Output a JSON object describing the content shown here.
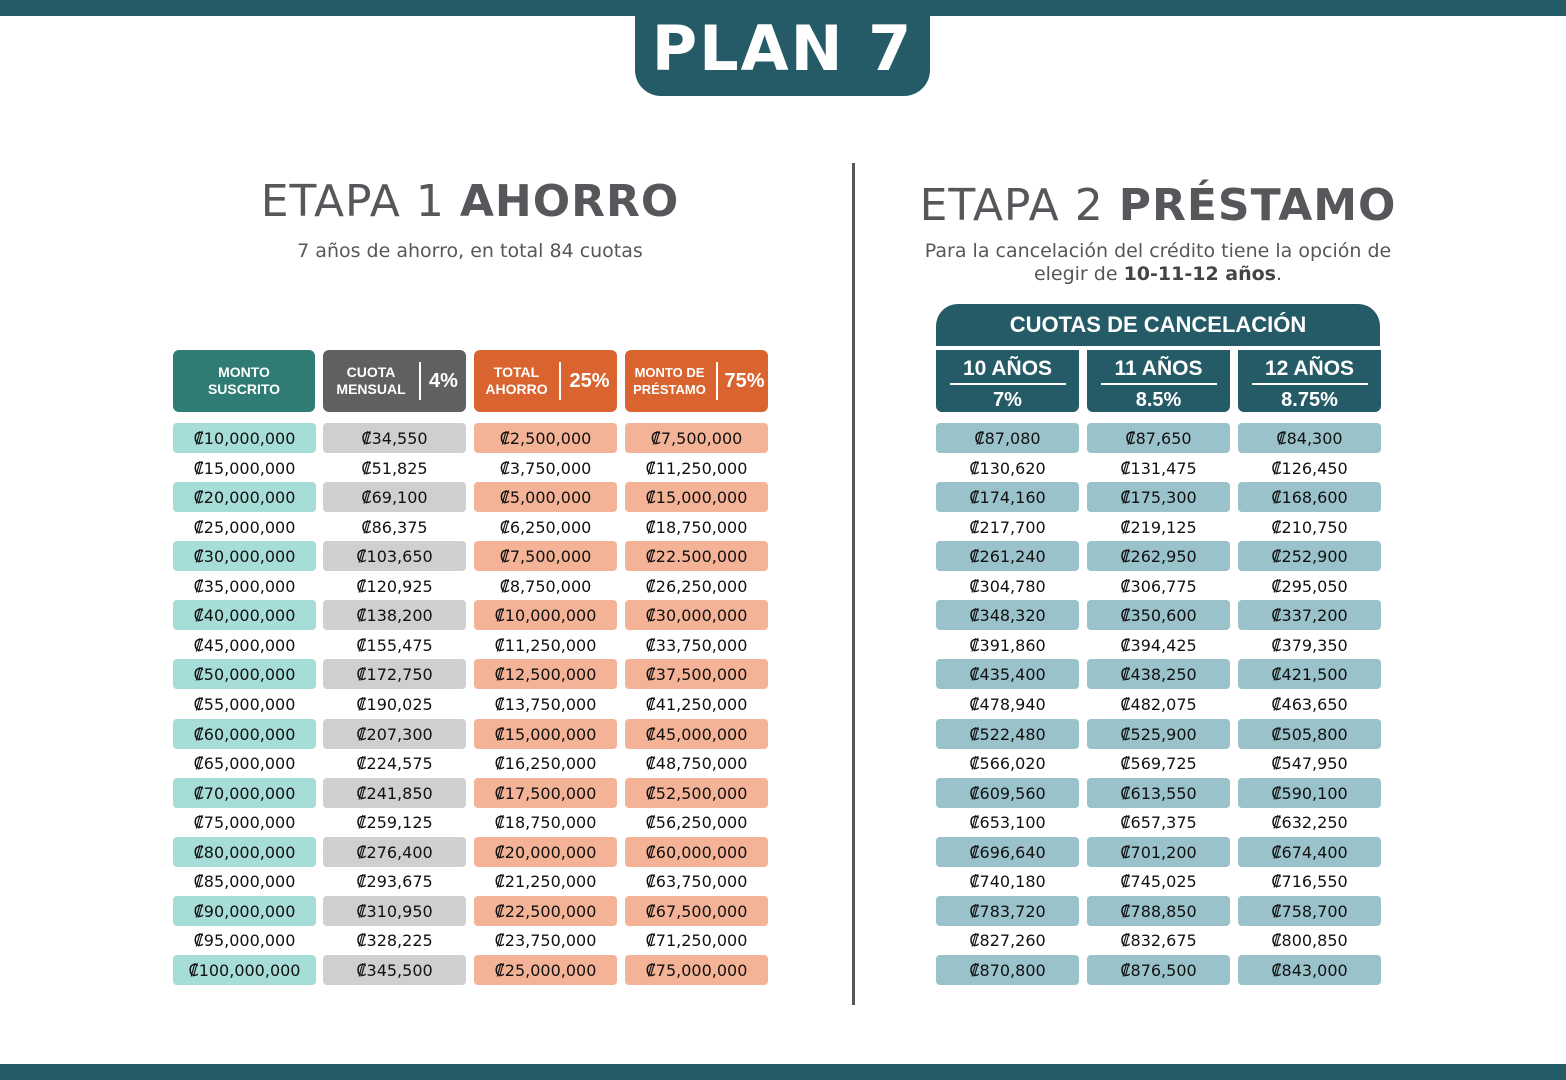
{
  "plan_title": "PLAN 7",
  "stage1": {
    "title_light": "ETAPA 1 ",
    "title_bold": "AHORRO",
    "subtitle": "7 años de ahorro, en total 84 cuotas",
    "headers": {
      "monto": "MONTO SUSCRITO",
      "cuota": "CUOTA MENSUAL",
      "cuota_pct": "4%",
      "total": "TOTAL AHORRO",
      "total_pct": "25%",
      "prestamo": "MONTO DE PRÉSTAMO",
      "prestamo_pct": "75%"
    },
    "rows": [
      [
        "₡10,000,000",
        "₡34,550",
        "₡2,500,000",
        "₡7,500,000"
      ],
      [
        "₡15,000,000",
        "₡51,825",
        "₡3,750,000",
        "₡11,250,000"
      ],
      [
        "₡20,000,000",
        "₡69,100",
        "₡5,000,000",
        "₡15,000,000"
      ],
      [
        "₡25,000,000",
        "₡86,375",
        "₡6,250,000",
        "₡18,750,000"
      ],
      [
        "₡30,000,000",
        "₡103,650",
        "₡7,500,000",
        "₡22.500,000"
      ],
      [
        "₡35,000,000",
        "₡120,925",
        "₡8,750,000",
        "₡26,250,000"
      ],
      [
        "₡40,000,000",
        "₡138,200",
        "₡10,000,000",
        "₡30,000,000"
      ],
      [
        "₡45,000,000",
        "₡155,475",
        "₡11,250,000",
        "₡33,750,000"
      ],
      [
        "₡50,000,000",
        "₡172,750",
        "₡12,500,000",
        "₡37,500,000"
      ],
      [
        "₡55,000,000",
        "₡190,025",
        "₡13,750,000",
        "₡41,250,000"
      ],
      [
        "₡60,000,000",
        "₡207,300",
        "₡15,000,000",
        "₡45,000,000"
      ],
      [
        "₡65,000,000",
        "₡224,575",
        "₡16,250,000",
        "₡48,750,000"
      ],
      [
        "₡70,000,000",
        "₡241,850",
        "₡17,500,000",
        "₡52,500,000"
      ],
      [
        "₡75,000,000",
        "₡259,125",
        "₡18,750,000",
        "₡56,250,000"
      ],
      [
        "₡80,000,000",
        "₡276,400",
        "₡20,000,000",
        "₡60,000,000"
      ],
      [
        "₡85,000,000",
        "₡293,675",
        "₡21,250,000",
        "₡63,750,000"
      ],
      [
        "₡90,000,000",
        "₡310,950",
        "₡22,500,000",
        "₡67,500,000"
      ],
      [
        "₡95,000,000",
        "₡328,225",
        "₡23,750,000",
        "₡71,250,000"
      ],
      [
        "₡100,000,000",
        "₡345,500",
        "₡25,000,000",
        "₡75,000,000"
      ]
    ]
  },
  "stage2": {
    "title_light": "ETAPA 2 ",
    "title_bold": "PRÉSTAMO",
    "subtitle_line1": "Para la cancelación del crédito tiene la opción de",
    "subtitle_line2_pre": "elegir de ",
    "subtitle_line2_bold": "10-11-12 años",
    "subtitle_line2_post": ".",
    "cancel_header": "CUOTAS DE CANCELACIÓN",
    "year_headers": [
      {
        "years": "10 AÑOS",
        "rate": "7%"
      },
      {
        "years": "11 AÑOS",
        "rate": "8.5%"
      },
      {
        "years": "12 AÑOS",
        "rate": "8.75%"
      }
    ],
    "rows": [
      [
        "₡87,080",
        "₡87,650",
        "₡84,300"
      ],
      [
        "₡130,620",
        "₡131,475",
        "₡126,450"
      ],
      [
        "₡174,160",
        "₡175,300",
        "₡168,600"
      ],
      [
        "₡217,700",
        "₡219,125",
        "₡210,750"
      ],
      [
        "₡261,240",
        "₡262,950",
        "₡252,900"
      ],
      [
        "₡304,780",
        "₡306,775",
        "₡295,050"
      ],
      [
        "₡348,320",
        "₡350,600",
        "₡337,200"
      ],
      [
        "₡391,860",
        "₡394,425",
        "₡379,350"
      ],
      [
        "₡435,400",
        "₡438,250",
        "₡421,500"
      ],
      [
        "₡478,940",
        "₡482,075",
        "₡463,650"
      ],
      [
        "₡522,480",
        "₡525,900",
        "₡505,800"
      ],
      [
        "₡566,020",
        "₡569,725",
        "₡547,950"
      ],
      [
        "₡609,560",
        "₡613,550",
        "₡590,100"
      ],
      [
        "₡653,100",
        "₡657,375",
        "₡632,250"
      ],
      [
        "₡696,640",
        "₡701,200",
        "₡674,400"
      ],
      [
        "₡740,180",
        "₡745,025",
        "₡716,550"
      ],
      [
        "₡783,720",
        "₡788,850",
        "₡758,700"
      ],
      [
        "₡827,260",
        "₡832,675",
        "₡800,850"
      ],
      [
        "₡870,800",
        "₡876,500",
        "₡843,000"
      ]
    ]
  },
  "colors": {
    "dark_teal": "#245b67",
    "monto_header": "#2e7c74",
    "cuota_header": "#5f6062",
    "orange_header": "#d9642f",
    "monto_cell": "#a6ddd8",
    "cuota_cell": "#cdcfd1",
    "orange_cell": "#f4b396",
    "stage2_cell": "#9ac2cb"
  }
}
